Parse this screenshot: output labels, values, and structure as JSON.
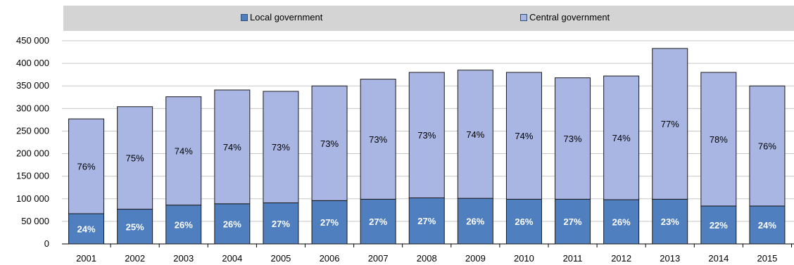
{
  "chart_data": {
    "type": "bar",
    "stacked": true,
    "categories": [
      "2001",
      "2002",
      "2003",
      "2004",
      "2005",
      "2006",
      "2007",
      "2008",
      "2009",
      "2010",
      "2011",
      "2012",
      "2013",
      "2014",
      "2015"
    ],
    "series": [
      {
        "name": "Local government",
        "color": "#4f7fbf",
        "values": [
          67000,
          77000,
          86000,
          89000,
          91000,
          96000,
          99000,
          102000,
          101000,
          99000,
          99000,
          98000,
          99000,
          84000,
          84000
        ],
        "labels": [
          "24%",
          "25%",
          "26%",
          "26%",
          "27%",
          "27%",
          "27%",
          "27%",
          "26%",
          "26%",
          "27%",
          "26%",
          "23%",
          "22%",
          "24%"
        ]
      },
      {
        "name": "Central government",
        "color": "#a9b6e4",
        "values": [
          210000,
          227000,
          240000,
          252000,
          247000,
          254000,
          266000,
          278000,
          284000,
          281000,
          269000,
          274000,
          334000,
          296000,
          266000
        ],
        "labels": [
          "76%",
          "75%",
          "74%",
          "74%",
          "73%",
          "73%",
          "73%",
          "73%",
          "74%",
          "74%",
          "73%",
          "74%",
          "77%",
          "78%",
          "76%"
        ]
      }
    ],
    "y_ticks": [
      "0",
      "50 000",
      "100 000",
      "150 000",
      "200 000",
      "250 000",
      "300 000",
      "350 000",
      "400 000",
      "450 000"
    ],
    "ylim": [
      0,
      450000
    ],
    "grid": true,
    "legend_position": "top",
    "title": "",
    "xlabel": "",
    "ylabel": ""
  }
}
